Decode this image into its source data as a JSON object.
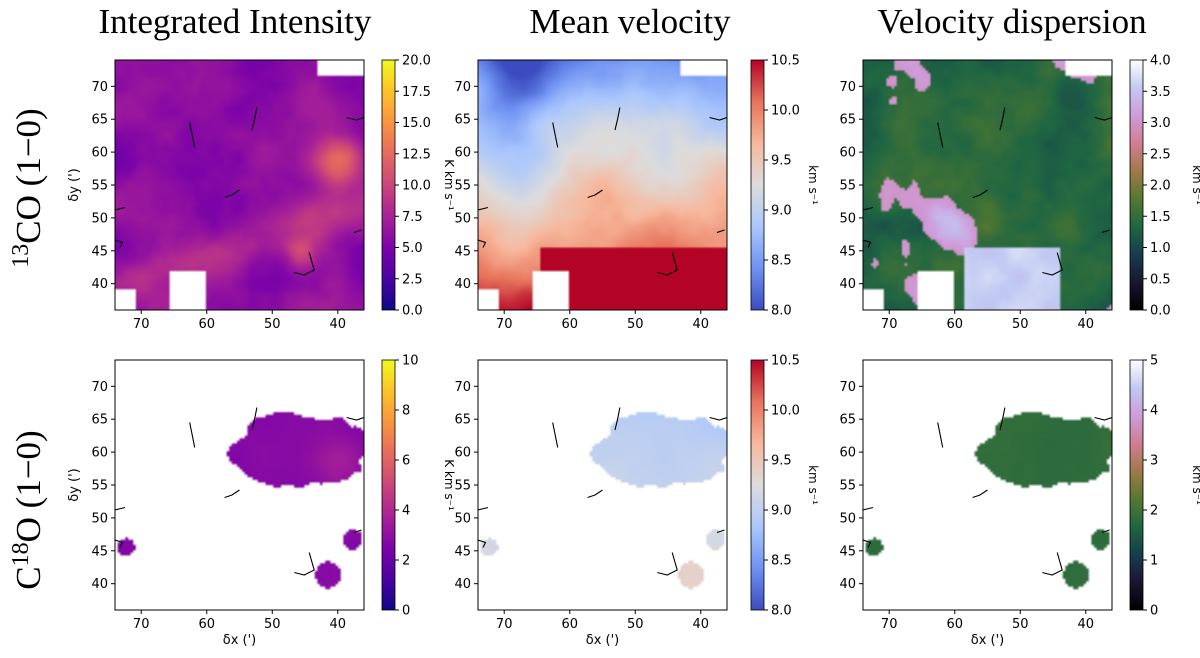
{
  "column_titles": [
    "Integrated Intensity",
    "Mean velocity",
    "Velocity dispersion"
  ],
  "row_labels": [
    {
      "base": "CO (1−0)",
      "sup": "13",
      "prefix": ""
    },
    {
      "base": "O (1−0)",
      "sup": "18",
      "prefix": "C"
    }
  ],
  "chart_data": [
    {
      "type": "heatmap",
      "row": 0,
      "col": 0,
      "molecule": "13CO (1-0)",
      "quantity": "Integrated Intensity",
      "colormap": "plasma",
      "xlabel": "",
      "ylabel": "δy (')",
      "xlim": [
        74,
        36
      ],
      "ylim": [
        36,
        74
      ],
      "xticks": [
        70,
        60,
        50,
        40
      ],
      "yticks": [
        40,
        45,
        50,
        55,
        60,
        65,
        70
      ],
      "cbar_label": "K km s⁻¹",
      "cbar_range": [
        0,
        20
      ],
      "cbar_ticks": [
        "0.0",
        "2.5",
        "5.0",
        "7.5",
        "10.0",
        "12.5",
        "15.0",
        "17.5",
        "20.0"
      ],
      "coverage": "full"
    },
    {
      "type": "heatmap",
      "row": 0,
      "col": 1,
      "molecule": "13CO (1-0)",
      "quantity": "Mean velocity",
      "colormap": "coolwarm",
      "xlabel": "",
      "ylabel": "",
      "xlim": [
        74,
        36
      ],
      "ylim": [
        36,
        74
      ],
      "xticks": [
        70,
        60,
        50,
        40
      ],
      "yticks": [
        40,
        45,
        50,
        55,
        60,
        65,
        70
      ],
      "cbar_label": "km s⁻¹",
      "cbar_range": [
        8.0,
        10.5
      ],
      "cbar_ticks": [
        "8.0",
        "8.5",
        "9.0",
        "9.5",
        "10.0",
        "10.5"
      ],
      "coverage": "full"
    },
    {
      "type": "heatmap",
      "row": 0,
      "col": 2,
      "molecule": "13CO (1-0)",
      "quantity": "Velocity dispersion",
      "colormap": "cubehelix",
      "xlabel": "",
      "ylabel": "",
      "xlim": [
        74,
        36
      ],
      "ylim": [
        36,
        74
      ],
      "xticks": [
        70,
        60,
        50,
        40
      ],
      "yticks": [
        40,
        45,
        50,
        55,
        60,
        65,
        70
      ],
      "cbar_label": "km s⁻¹",
      "cbar_range": [
        0,
        4
      ],
      "cbar_ticks": [
        "0.0",
        "0.5",
        "1.0",
        "1.5",
        "2.0",
        "2.5",
        "3.0",
        "3.5",
        "4.0"
      ],
      "coverage": "full"
    },
    {
      "type": "heatmap",
      "row": 1,
      "col": 0,
      "molecule": "C18O (1-0)",
      "quantity": "Integrated Intensity",
      "colormap": "plasma",
      "xlabel": "δx (')",
      "ylabel": "δy (')",
      "xlim": [
        74,
        36
      ],
      "ylim": [
        36,
        74
      ],
      "xticks": [
        70,
        60,
        50,
        40
      ],
      "yticks": [
        40,
        45,
        50,
        55,
        60,
        65,
        70
      ],
      "cbar_label": "K km s⁻¹",
      "cbar_range": [
        0,
        10
      ],
      "cbar_ticks": [
        "0",
        "2",
        "4",
        "6",
        "8",
        "10"
      ],
      "coverage": "sparse"
    },
    {
      "type": "heatmap",
      "row": 1,
      "col": 1,
      "molecule": "C18O (1-0)",
      "quantity": "Mean velocity",
      "colormap": "coolwarm",
      "xlabel": "δx (')",
      "ylabel": "",
      "xlim": [
        74,
        36
      ],
      "ylim": [
        36,
        74
      ],
      "xticks": [
        70,
        60,
        50,
        40
      ],
      "yticks": [
        40,
        45,
        50,
        55,
        60,
        65,
        70
      ],
      "cbar_label": "km s⁻¹",
      "cbar_range": [
        8.0,
        10.5
      ],
      "cbar_ticks": [
        "8.0",
        "8.5",
        "9.0",
        "9.5",
        "10.0",
        "10.5"
      ],
      "coverage": "sparse"
    },
    {
      "type": "heatmap",
      "row": 1,
      "col": 2,
      "molecule": "C18O (1-0)",
      "quantity": "Velocity dispersion",
      "colormap": "cubehelix",
      "xlabel": "δx (')",
      "ylabel": "",
      "xlim": [
        74,
        36
      ],
      "ylim": [
        36,
        74
      ],
      "xticks": [
        70,
        60,
        50,
        40
      ],
      "yticks": [
        40,
        45,
        50,
        55,
        60,
        65,
        70
      ],
      "cbar_label": "km s⁻¹",
      "cbar_range": [
        0,
        5
      ],
      "cbar_ticks": [
        "0",
        "1",
        "2",
        "3",
        "4",
        "5"
      ],
      "coverage": "sparse"
    }
  ],
  "colormaps": {
    "plasma": [
      "#0d0887",
      "#4b03a1",
      "#7d03a8",
      "#a82296",
      "#cb4679",
      "#e56b5d",
      "#f89441",
      "#fdc328",
      "#f0f921"
    ],
    "coolwarm": [
      "#3b4cc0",
      "#6f92f3",
      "#aac7fd",
      "#dddcdc",
      "#f7b89c",
      "#e7745b",
      "#b40426"
    ],
    "cubehelix": [
      "#000000",
      "#1a1530",
      "#163d4e",
      "#1f6642",
      "#54792f",
      "#a07949",
      "#d07e93",
      "#cf9cda",
      "#c1caf3",
      "#ffffff"
    ]
  },
  "contour_color": "#000000"
}
